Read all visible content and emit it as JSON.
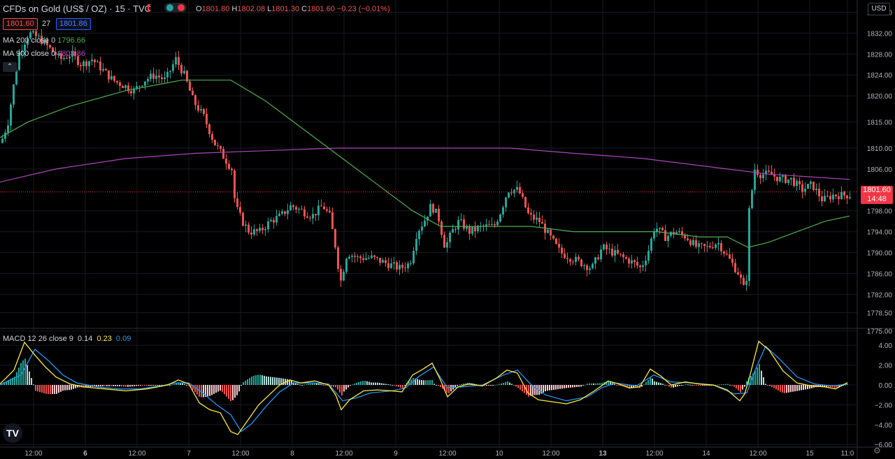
{
  "header": {
    "title": "CFDs on Gold (US$ / OZ) · 15 · TVC",
    "ohlc": [
      {
        "label": "O",
        "value": "1801.80"
      },
      {
        "label": "H",
        "value": "1802.08"
      },
      {
        "label": "L",
        "value": "1801.30"
      },
      {
        "label": "C",
        "value": "1801.60"
      },
      {
        "label": "",
        "value": "−0.23 (−0.01%)"
      }
    ],
    "bid": "1801.60",
    "spread": "27",
    "ask": "1801.86",
    "currency": "USD"
  },
  "indicators": {
    "ma200": {
      "label": "MA 200 close 0",
      "value": "1796.66",
      "color": "#4caf50"
    },
    "ma900": {
      "label": "MA 900 close 0",
      "value": "1803.86",
      "color": "#ab47bc"
    },
    "collapse_icon": "chevron-up-icon"
  },
  "last_price": {
    "value": "1801.60",
    "countdown": "14:48",
    "color": "#f23645"
  },
  "macd": {
    "label": "MACD 12 26 close 9",
    "hist": "0.14",
    "macd": "0.23",
    "signal": "0.09",
    "hist_color": "#d1d4dc",
    "macd_color": "#ffeb3b",
    "signal_color": "#2196f3"
  },
  "logo": "TV",
  "settings_icon": "gear-icon",
  "chart_data": [
    {
      "type": "candlestick",
      "title": "CFDs on Gold (US$ / OZ) · 15 · TVC",
      "ylim": [
        1775.5,
        1837
      ],
      "yticks": [
        "1836.00",
        "1832.00",
        "1828.00",
        "1824.00",
        "1820.00",
        "1815.00",
        "1810.00",
        "1806.00",
        "1798.00",
        "1794.00",
        "1790.00",
        "1786.00",
        "1782.00",
        "1778.50",
        "1775.00"
      ],
      "xticks": [
        "12:00",
        "6",
        "12:00",
        "7",
        "12:00",
        "8",
        "12:00",
        "9",
        "12:00",
        "10",
        "12:00",
        "13",
        "12:00",
        "14",
        "12:00",
        "15",
        "11:0"
      ],
      "xtick_bold": [
        "6",
        "13"
      ],
      "anchors_close": [
        [
          0,
          1811
        ],
        [
          10,
          1815
        ],
        [
          25,
          1828
        ],
        [
          40,
          1832
        ],
        [
          55,
          1831
        ],
        [
          70,
          1829
        ],
        [
          85,
          1827
        ],
        [
          100,
          1828
        ],
        [
          115,
          1826
        ],
        [
          130,
          1827
        ],
        [
          145,
          1825
        ],
        [
          160,
          1823
        ],
        [
          175,
          1822
        ],
        [
          190,
          1821
        ],
        [
          205,
          1823
        ],
        [
          220,
          1824
        ],
        [
          235,
          1823
        ],
        [
          250,
          1827
        ],
        [
          262,
          1824
        ],
        [
          275,
          1819
        ],
        [
          290,
          1816
        ],
        [
          305,
          1811
        ],
        [
          320,
          1808
        ],
        [
          330,
          1806
        ],
        [
          335,
          1799
        ],
        [
          345,
          1796
        ],
        [
          355,
          1794
        ],
        [
          370,
          1794
        ],
        [
          385,
          1796
        ],
        [
          400,
          1797
        ],
        [
          415,
          1799
        ],
        [
          430,
          1798
        ],
        [
          445,
          1797
        ],
        [
          460,
          1799
        ],
        [
          470,
          1797
        ],
        [
          480,
          1790
        ],
        [
          485,
          1784
        ],
        [
          495,
          1790
        ],
        [
          510,
          1789
        ],
        [
          530,
          1789
        ],
        [
          550,
          1788
        ],
        [
          570,
          1787
        ],
        [
          585,
          1788
        ],
        [
          595,
          1794
        ],
        [
          605,
          1796
        ],
        [
          615,
          1799
        ],
        [
          625,
          1797
        ],
        [
          635,
          1791
        ],
        [
          645,
          1794
        ],
        [
          655,
          1796
        ],
        [
          670,
          1794
        ],
        [
          690,
          1795
        ],
        [
          705,
          1795
        ],
        [
          715,
          1798
        ],
        [
          725,
          1802
        ],
        [
          740,
          1802
        ],
        [
          755,
          1797
        ],
        [
          770,
          1796
        ],
        [
          785,
          1793
        ],
        [
          800,
          1790
        ],
        [
          815,
          1789
        ],
        [
          830,
          1788
        ],
        [
          845,
          1787
        ],
        [
          860,
          1791
        ],
        [
          875,
          1790
        ],
        [
          890,
          1789
        ],
        [
          905,
          1788
        ],
        [
          915,
          1787
        ],
        [
          925,
          1790
        ],
        [
          935,
          1795
        ],
        [
          950,
          1793
        ],
        [
          965,
          1794
        ],
        [
          980,
          1793
        ],
        [
          995,
          1791
        ],
        [
          1010,
          1791
        ],
        [
          1025,
          1792
        ],
        [
          1040,
          1789
        ],
        [
          1055,
          1786
        ],
        [
          1065,
          1782
        ],
        [
          1070,
          1798
        ],
        [
          1078,
          1806
        ],
        [
          1085,
          1805
        ],
        [
          1100,
          1805
        ],
        [
          1115,
          1804
        ],
        [
          1130,
          1804
        ],
        [
          1145,
          1802
        ],
        [
          1160,
          1803
        ],
        [
          1175,
          1800
        ],
        [
          1190,
          1801
        ],
        [
          1200,
          1801
        ],
        [
          1210,
          1801
        ]
      ],
      "ma200": [
        [
          0,
          1812
        ],
        [
          40,
          1815
        ],
        [
          100,
          1818
        ],
        [
          180,
          1821
        ],
        [
          260,
          1823
        ],
        [
          330,
          1823
        ],
        [
          380,
          1819
        ],
        [
          440,
          1813
        ],
        [
          490,
          1808
        ],
        [
          540,
          1803
        ],
        [
          590,
          1798
        ],
        [
          630,
          1795
        ],
        [
          660,
          1795
        ],
        [
          700,
          1795
        ],
        [
          760,
          1795
        ],
        [
          820,
          1794
        ],
        [
          880,
          1794
        ],
        [
          940,
          1794
        ],
        [
          1000,
          1793
        ],
        [
          1040,
          1793
        ],
        [
          1070,
          1791
        ],
        [
          1100,
          1792
        ],
        [
          1140,
          1794
        ],
        [
          1180,
          1796
        ],
        [
          1215,
          1797
        ]
      ],
      "ma900": [
        [
          0,
          1803.5
        ],
        [
          80,
          1806
        ],
        [
          180,
          1808
        ],
        [
          280,
          1809
        ],
        [
          380,
          1809.5
        ],
        [
          480,
          1810
        ],
        [
          600,
          1810
        ],
        [
          730,
          1810
        ],
        [
          820,
          1809
        ],
        [
          920,
          1808
        ],
        [
          1010,
          1806.5
        ],
        [
          1100,
          1805
        ],
        [
          1215,
          1804
        ]
      ],
      "last_price": 1801.6
    },
    {
      "type": "line",
      "title": "MACD 12 26 close 9",
      "ylim": [
        -6,
        5
      ],
      "yticks": [
        "4.00",
        "2.00",
        "0.00",
        "−2.00",
        "−4.00",
        "−6.00"
      ],
      "macd": [
        [
          0,
          0.1
        ],
        [
          20,
          1.5
        ],
        [
          35,
          4.3
        ],
        [
          50,
          3.0
        ],
        [
          65,
          1.8
        ],
        [
          80,
          0.8
        ],
        [
          100,
          0.1
        ],
        [
          120,
          -0.2
        ],
        [
          150,
          -0.4
        ],
        [
          180,
          -0.6
        ],
        [
          210,
          -0.4
        ],
        [
          240,
          0.0
        ],
        [
          255,
          0.5
        ],
        [
          270,
          0.1
        ],
        [
          285,
          -1.8
        ],
        [
          300,
          -2.5
        ],
        [
          315,
          -2.8
        ],
        [
          330,
          -4.7
        ],
        [
          340,
          -5.0
        ],
        [
          355,
          -3.5
        ],
        [
          370,
          -2.0
        ],
        [
          385,
          -1.0
        ],
        [
          400,
          0.0
        ],
        [
          415,
          0.5
        ],
        [
          430,
          0.2
        ],
        [
          450,
          0.4
        ],
        [
          470,
          0.0
        ],
        [
          480,
          -1.0
        ],
        [
          488,
          -2.5
        ],
        [
          500,
          -1.5
        ],
        [
          520,
          -0.6
        ],
        [
          540,
          -0.5
        ],
        [
          560,
          -0.6
        ],
        [
          575,
          -0.7
        ],
        [
          590,
          1.0
        ],
        [
          605,
          1.6
        ],
        [
          618,
          2.2
        ],
        [
          630,
          0.5
        ],
        [
          640,
          -1.2
        ],
        [
          655,
          -0.2
        ],
        [
          670,
          0.1
        ],
        [
          690,
          -0.1
        ],
        [
          710,
          0.7
        ],
        [
          725,
          1.5
        ],
        [
          740,
          1.2
        ],
        [
          755,
          -0.8
        ],
        [
          770,
          -1.5
        ],
        [
          790,
          -1.7
        ],
        [
          810,
          -1.9
        ],
        [
          830,
          -1.5
        ],
        [
          850,
          -0.6
        ],
        [
          870,
          0.4
        ],
        [
          885,
          0.1
        ],
        [
          900,
          -0.3
        ],
        [
          915,
          -0.2
        ],
        [
          930,
          1.6
        ],
        [
          945,
          0.9
        ],
        [
          960,
          0.0
        ],
        [
          980,
          0.3
        ],
        [
          1000,
          0.1
        ],
        [
          1020,
          0.0
        ],
        [
          1040,
          -0.5
        ],
        [
          1058,
          -1.6
        ],
        [
          1065,
          -0.9
        ],
        [
          1072,
          0.8
        ],
        [
          1085,
          4.4
        ],
        [
          1100,
          3.5
        ],
        [
          1120,
          1.4
        ],
        [
          1140,
          0.2
        ],
        [
          1160,
          -0.1
        ],
        [
          1180,
          -0.2
        ],
        [
          1195,
          -0.4
        ],
        [
          1212,
          0.23
        ]
      ],
      "signal": [
        [
          0,
          0.0
        ],
        [
          30,
          1.0
        ],
        [
          50,
          3.6
        ],
        [
          70,
          2.4
        ],
        [
          90,
          1.0
        ],
        [
          110,
          0.2
        ],
        [
          140,
          -0.2
        ],
        [
          170,
          -0.4
        ],
        [
          200,
          -0.4
        ],
        [
          230,
          -0.1
        ],
        [
          250,
          0.2
        ],
        [
          270,
          0.2
        ],
        [
          290,
          -0.8
        ],
        [
          310,
          -2.0
        ],
        [
          330,
          -3.0
        ],
        [
          345,
          -4.7
        ],
        [
          360,
          -3.9
        ],
        [
          380,
          -2.2
        ],
        [
          400,
          -0.7
        ],
        [
          420,
          0.2
        ],
        [
          450,
          0.2
        ],
        [
          470,
          0.1
        ],
        [
          490,
          -1.6
        ],
        [
          510,
          -1.3
        ],
        [
          530,
          -0.8
        ],
        [
          560,
          -0.6
        ],
        [
          580,
          -0.3
        ],
        [
          600,
          0.9
        ],
        [
          620,
          1.8
        ],
        [
          640,
          -0.3
        ],
        [
          660,
          -0.2
        ],
        [
          690,
          0.0
        ],
        [
          720,
          1.0
        ],
        [
          740,
          1.5
        ],
        [
          760,
          0.0
        ],
        [
          780,
          -1.0
        ],
        [
          810,
          -1.6
        ],
        [
          840,
          -1.2
        ],
        [
          860,
          -0.3
        ],
        [
          880,
          0.2
        ],
        [
          910,
          -0.1
        ],
        [
          935,
          1.0
        ],
        [
          960,
          0.3
        ],
        [
          990,
          0.2
        ],
        [
          1020,
          0.0
        ],
        [
          1050,
          -0.9
        ],
        [
          1068,
          -0.8
        ],
        [
          1080,
          1.5
        ],
        [
          1095,
          3.9
        ],
        [
          1115,
          2.6
        ],
        [
          1140,
          0.8
        ],
        [
          1165,
          0.1
        ],
        [
          1190,
          -0.1
        ],
        [
          1212,
          0.09
        ]
      ]
    }
  ]
}
